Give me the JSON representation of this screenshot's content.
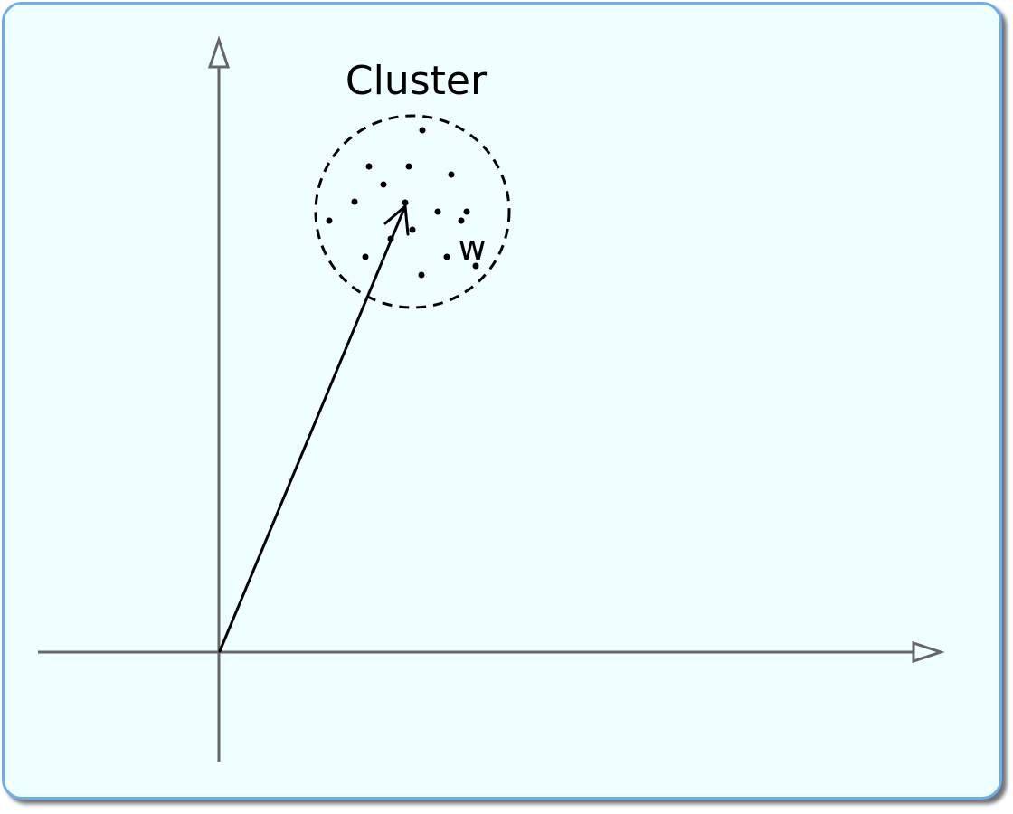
{
  "diagram": {
    "cluster_label": "Cluster",
    "vector_label": "w"
  },
  "colors": {
    "background": "#efffff",
    "border": "#6aaeea",
    "axis": "#666666",
    "ink": "#000000"
  }
}
